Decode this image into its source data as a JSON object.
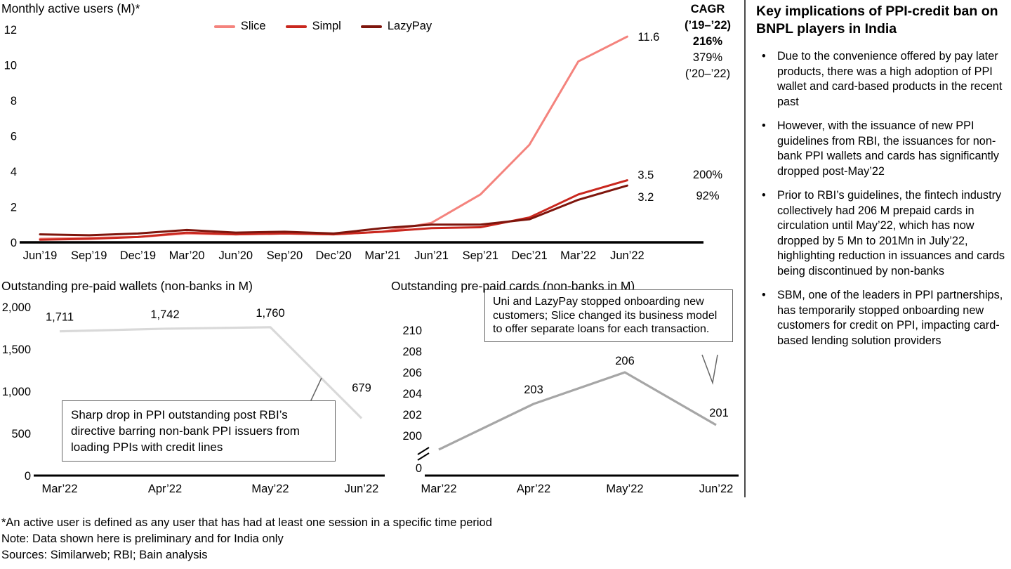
{
  "page": {
    "footnotes": [
      "*An active user is defined as any user that has had at least one session in a specific time period",
      "Note: Data shown here is preliminary and for India only",
      "Sources: Similarweb; RBI; Bain analysis"
    ]
  },
  "right_panel": {
    "title": "Key implications of PPI-credit ban on BNPL players in India",
    "bullets": [
      "Due to the convenience offered by pay later products, there was a high adoption of PPI wallet and card-based products in the recent past",
      "However, with the issuance of new PPI guidelines from RBI, the issuances for non-bank PPI wallets and cards has significantly dropped post-May’22",
      "Prior to RBI’s guidelines, the fintech industry collectively had 206 M prepaid cards in circulation until May’22, which has now dropped by 5 Mn to 201Mn in July’22, highlighting reduction in issuances and cards being discontinued by non-banks",
      "SBM, one of the leaders in PPI partnerships, has temporarily stopped onboarding new customers for credit on PPI, impacting card-based lending solution providers"
    ]
  },
  "chart_data": [
    {
      "id": "mau",
      "type": "line",
      "title": "Monthly active users (M)*",
      "categories": [
        "Jun’19",
        "Sep’19",
        "Dec’19",
        "Mar’20",
        "Jun’20",
        "Sep’20",
        "Dec’20",
        "Mar’21",
        "Jun’21",
        "Sep’21",
        "Dec’21",
        "Mar’22",
        "Jun’22"
      ],
      "ylim": [
        0,
        12
      ],
      "yticks": [
        0,
        2,
        4,
        6,
        8,
        10,
        12
      ],
      "legend_position": "top",
      "grid": false,
      "series": [
        {
          "name": "Slice",
          "color": "#F4837D",
          "values": [
            0.2,
            0.25,
            0.3,
            0.5,
            0.45,
            0.5,
            0.45,
            0.6,
            1.1,
            2.7,
            5.5,
            10.2,
            11.6
          ],
          "end_label": "11.6"
        },
        {
          "name": "Simpl",
          "color": "#C9271E",
          "values": [
            0.15,
            0.2,
            0.3,
            0.55,
            0.45,
            0.5,
            0.45,
            0.6,
            0.8,
            0.85,
            1.4,
            2.7,
            3.5
          ],
          "end_label": "3.5"
        },
        {
          "name": "LazyPay",
          "color": "#7E150C",
          "values": [
            0.45,
            0.4,
            0.5,
            0.7,
            0.55,
            0.6,
            0.5,
            0.8,
            1.0,
            1.0,
            1.3,
            2.4,
            3.2
          ],
          "end_label": "3.2"
        }
      ],
      "cagr": {
        "header1": "CAGR",
        "header2": "(’19–’22)",
        "slice": "216%",
        "slice_alt": "379%",
        "slice_alt_period": "(’20–’22)",
        "simpl": "200%",
        "lazypay": "92%"
      }
    },
    {
      "id": "wallets",
      "type": "line",
      "title": "Outstanding pre-paid wallets (non-banks in M)",
      "categories": [
        "Mar’22",
        "Apr’22",
        "May’22",
        "Jun’22"
      ],
      "values": [
        1711,
        1742,
        1760,
        679
      ],
      "value_labels": [
        "1,711",
        "1,742",
        "1,760",
        "679"
      ],
      "ylim": [
        0,
        2000
      ],
      "yticks": [
        0,
        500,
        1000,
        1500,
        2000
      ],
      "ytick_labels": [
        "0",
        "500",
        "1,000",
        "1,500",
        "2,000"
      ],
      "color": "#D9D9D9",
      "callout": "Sharp drop in PPI outstanding post RBI’s directive barring non-bank PPI issuers from loading PPIs with credit lines"
    },
    {
      "id": "cards",
      "type": "line",
      "title": "Outstanding pre-paid cards (non-banks in M)",
      "categories": [
        "Mar’22",
        "Apr’22",
        "May’22",
        "Jun’22"
      ],
      "values": [
        199.5,
        203,
        206,
        201
      ],
      "value_labels": [
        "",
        "203",
        "206",
        "201"
      ],
      "ylim": [
        200,
        210
      ],
      "yticks": [
        200,
        202,
        204,
        206,
        208,
        210
      ],
      "axis_break": true,
      "zero_label": "0",
      "color": "#A6A6A6",
      "callout": "Uni and LazyPay stopped onboarding new customers; Slice changed its business model to offer separate loans for each transaction."
    }
  ]
}
